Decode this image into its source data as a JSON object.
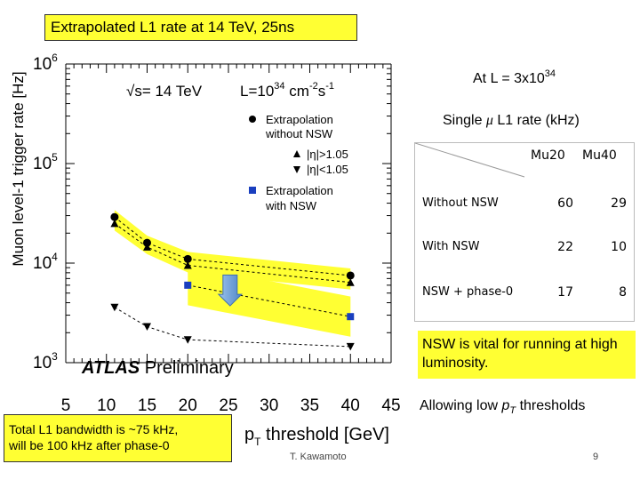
{
  "title": "Extrapolated L1 rate   at 14 TeV,  25ns",
  "chart_data": {
    "type": "scatter",
    "log_y": true,
    "xlim": [
      5,
      45
    ],
    "ylim": [
      1000,
      1000000
    ],
    "x_ticks": [
      "5",
      "10",
      "15",
      "20",
      "25",
      "30",
      "35",
      "40",
      "45"
    ],
    "y_ticks": [
      {
        "base": "10",
        "exp": "6"
      },
      {
        "base": "10",
        "exp": "5"
      },
      {
        "base": "10",
        "exp": "4"
      },
      {
        "base": "10",
        "exp": "3"
      }
    ],
    "ylabel": "Muon level-1 trigger rate [Hz]",
    "xlabel_main": "p",
    "xlabel_sub": "T",
    "xlabel_rest": " threshold [GeV]",
    "conditions": {
      "energy": "√s= 14 TeV",
      "lumi_prefix": "L=10",
      "lumi_exp": "34",
      "lumi_unit": " cm",
      "lumi_unit_exp1": "-2",
      "lumi_mid": "s",
      "lumi_unit_exp2": "-1"
    },
    "legend": {
      "without_nsw_line1": "Extrapolation",
      "without_nsw_line2": "without NSW",
      "eta_gt": "|η|>1.05",
      "eta_lt": "|η|<1.05",
      "with_nsw_line1": "Extrapolation",
      "with_nsw_line2": "with NSW"
    },
    "series": [
      {
        "name": "Extrapolation without NSW",
        "marker": "circle",
        "x": [
          11,
          15,
          20,
          40
        ],
        "y": [
          29000,
          16000,
          11000,
          7500
        ]
      },
      {
        "name": "|η|>1.05",
        "marker": "triangle-up",
        "x": [
          11,
          15,
          20,
          40
        ],
        "y": [
          25000,
          14500,
          9500,
          6400
        ]
      },
      {
        "name": "|η|<1.05",
        "marker": "triangle-down",
        "x": [
          11,
          15,
          20,
          40
        ],
        "y": [
          3600,
          2300,
          1700,
          1450
        ]
      },
      {
        "name": "Extrapolation with NSW",
        "marker": "square",
        "x": [
          20,
          40
        ],
        "y": [
          6000,
          2900
        ]
      }
    ],
    "atlas_label": "ATLAS",
    "atlas_sub": " Preliminary"
  },
  "annotation_L": {
    "prefix": "At  L = 3x10",
    "exp": "34"
  },
  "rate_table": {
    "caption_pre": "Single ",
    "caption_mu": "μ",
    "caption_post": " L1 rate  (kHz)",
    "headers": [
      "Mu20",
      "Mu40"
    ],
    "rows": [
      {
        "label": "Without NSW",
        "mu20": "60",
        "mu40": "29"
      },
      {
        "label": "With NSW",
        "mu20": "22",
        "mu40": "10"
      },
      {
        "label": "NSW + phase-0",
        "mu20": "17",
        "mu40": "8"
      }
    ]
  },
  "notes": {
    "vital": "NSW is vital for running at high luminosity.",
    "lowpt_pre": "Allowing low ",
    "lowpt_p": "p",
    "lowpt_T": "T",
    "lowpt_post": " thresholds"
  },
  "bandwidth": {
    "line1": "Total L1 bandwidth is ~75 kHz,",
    "line2": "will be 100 kHz after phase-0"
  },
  "footer": {
    "author": "T. Kawamoto",
    "page": "9"
  },
  "colors": {
    "band": "#ffff33",
    "marker": "#000000",
    "nsw_marker": "#1a3fbf",
    "arrow": "#6aa0dc",
    "text": "#000000"
  }
}
